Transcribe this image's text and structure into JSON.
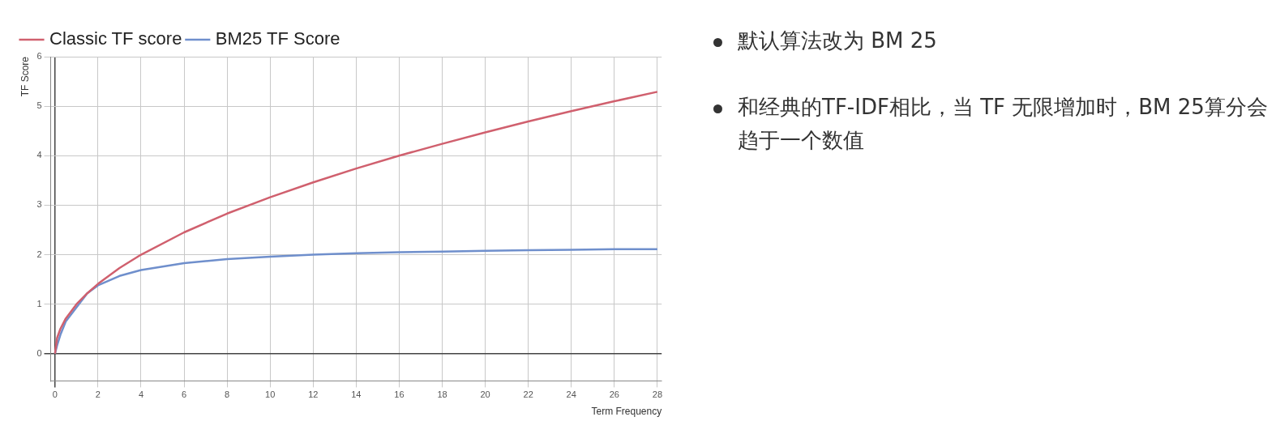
{
  "chart_data": {
    "type": "line",
    "xlabel": "Term Frequency",
    "ylabel": "TF Score",
    "x": [
      0,
      0.1,
      0.25,
      0.5,
      1,
      1.5,
      2,
      3,
      4,
      6,
      8,
      10,
      12,
      14,
      16,
      18,
      20,
      22,
      24,
      26,
      28
    ],
    "series": [
      {
        "name": "Classic TF score",
        "color": "#d0606e",
        "values": [
          0,
          0.32,
          0.5,
          0.71,
          1,
          1.22,
          1.41,
          1.73,
          2,
          2.45,
          2.83,
          3.16,
          3.46,
          3.74,
          4,
          4.24,
          4.47,
          4.69,
          4.9,
          5.1,
          5.29
        ]
      },
      {
        "name": "BM25 TF Score",
        "color": "#6f8fcc",
        "x": [
          0,
          0.1,
          0.25,
          0.5,
          1.5,
          2,
          3,
          4,
          6,
          8,
          10,
          12,
          14,
          16,
          18,
          20,
          22,
          24,
          26,
          28
        ],
        "values": [
          0,
          0.17,
          0.38,
          0.65,
          1.22,
          1.38,
          1.57,
          1.69,
          1.83,
          1.91,
          1.96,
          2,
          2.03,
          2.05,
          2.06,
          2.08,
          2.09,
          2.1,
          2.11,
          2.11
        ]
      }
    ],
    "xlim": [
      -0.2,
      28.2
    ],
    "ylim": [
      -0.55,
      6
    ],
    "xticks": [
      0,
      2,
      4,
      6,
      8,
      10,
      12,
      14,
      16,
      18,
      20,
      22,
      24,
      26,
      28
    ],
    "yticks": [
      0,
      1,
      2,
      3,
      4,
      5,
      6
    ],
    "grid": true,
    "legend": "top left",
    "marker": "none",
    "line_style": "solid",
    "annotations": [
      "默认算法改为 BM 25",
      "和经典的TF-IDF相比，当 TF 无限增加时，BM 25算分会趋于一个数值"
    ]
  }
}
